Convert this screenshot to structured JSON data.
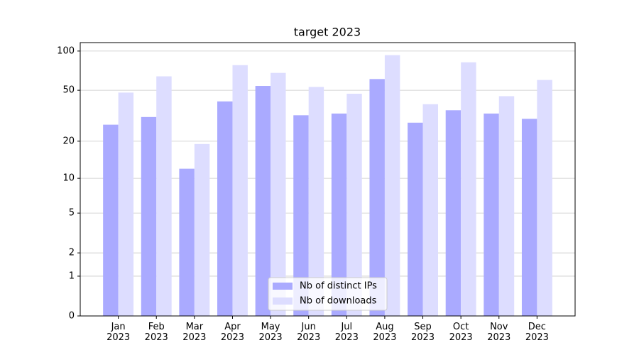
{
  "chart_data": {
    "type": "bar",
    "title": "target 2023",
    "categories": [
      "Jan\n2023",
      "Feb\n2023",
      "Mar\n2023",
      "Apr\n2023",
      "May\n2023",
      "Jun\n2023",
      "Jul\n2023",
      "Aug\n2023",
      "Sep\n2023",
      "Oct\n2023",
      "Nov\n2023",
      "Dec\n2023"
    ],
    "series": [
      {
        "name": "Nb of distinct IPs",
        "color": "#aaaaff",
        "values": [
          27,
          31,
          12,
          41,
          54,
          32,
          33,
          61,
          28,
          35,
          33,
          30
        ]
      },
      {
        "name": "Nb of downloads",
        "color": "#ddddff",
        "values": [
          48,
          64,
          19,
          78,
          68,
          53,
          47,
          93,
          39,
          82,
          45,
          60
        ]
      }
    ],
    "yscale": "log1p",
    "ylim": [
      0,
      116
    ],
    "yticks": [
      0,
      1,
      2,
      5,
      10,
      20,
      50,
      100
    ],
    "grid": true,
    "legend": "lower center"
  }
}
